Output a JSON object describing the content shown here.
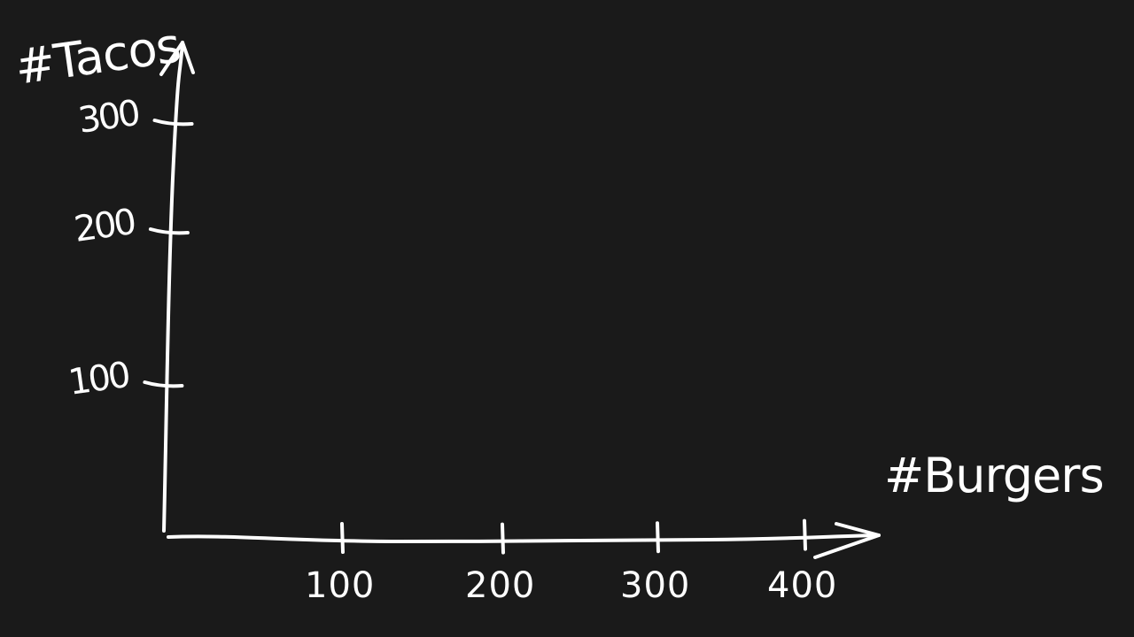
{
  "chart_data": {
    "type": "scatter",
    "title": "",
    "xlabel": "#Burgers",
    "ylabel": "#Tacos",
    "xlim": [
      0,
      400
    ],
    "ylim": [
      0,
      300
    ],
    "x_ticks": [
      100,
      200,
      300,
      400
    ],
    "y_ticks": [
      100,
      200,
      300
    ],
    "x_tick_labels": [
      "100",
      "200",
      "300",
      "400"
    ],
    "y_tick_labels": [
      "100",
      "200",
      "300"
    ],
    "series": [],
    "grid": false,
    "style": "hand-drawn",
    "colors": {
      "background": "#1a1a1a",
      "ink": "#ffffff"
    }
  }
}
